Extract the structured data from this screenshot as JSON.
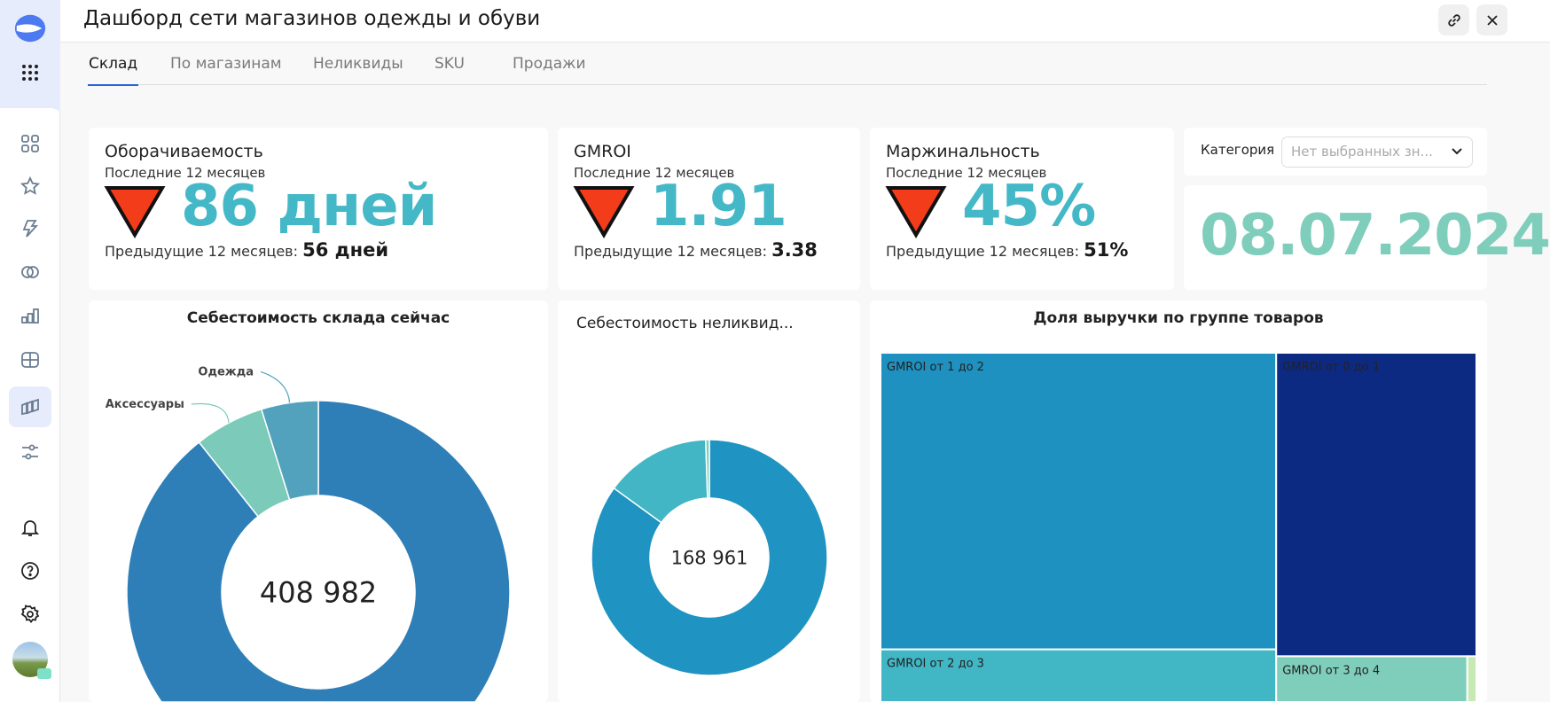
{
  "header": {
    "title": "Дашборд сети магазинов одежды и обуви",
    "link_icon": "link-icon",
    "close_icon": "close-icon"
  },
  "tabs": [
    {
      "label": "Склад",
      "active": true
    },
    {
      "label": "По магазинам"
    },
    {
      "label": "Неликвиды"
    },
    {
      "label": "SKU"
    },
    {
      "label": "Продажи"
    }
  ],
  "sidebar": {
    "items": [
      "logo",
      "apps-grid-icon",
      "dashboards-icon",
      "star-icon",
      "bolt-icon",
      "connections-icon",
      "charts-icon",
      "datasets-icon",
      "workbooks-icon",
      "settings-sliders-icon",
      "bell-icon",
      "help-icon",
      "gear-icon",
      "avatar"
    ]
  },
  "kpis": [
    {
      "title": "Оборачиваемость",
      "subtitle": "Последние 12 месяцев",
      "value": "86 дней",
      "prev_label": "Предыдущие 12 месяцев:",
      "prev_value": "56 дней",
      "trend": "down"
    },
    {
      "title": "GMROI",
      "subtitle": "Последние 12 месяцев",
      "value": "1.91",
      "prev_label": "Предыдущие 12 месяцев:",
      "prev_value": "3.38",
      "trend": "down"
    },
    {
      "title": "Маржинальность",
      "subtitle": "Последние 12 месяцев",
      "value": "45%",
      "prev_label": "Предыдущие 12 месяцев:",
      "prev_value": "51%",
      "trend": "down"
    }
  ],
  "filter": {
    "label": "Категория",
    "placeholder": "Нет выбранных зн..."
  },
  "date": "08.07.2024",
  "colors": {
    "kpi": "#45b8c8",
    "date": "#7fcdbb",
    "trend_down": "#f23c1a"
  },
  "chart_data": [
    {
      "type": "pie",
      "title": "Себестоимость склада сейчас",
      "center_label": "408 982",
      "slices": [
        {
          "name": "",
          "value": 89.3,
          "color": "#2e7fb8"
        },
        {
          "name": "Аксессуары",
          "value": 5.9,
          "color": "#7ccaba"
        },
        {
          "name": "Одежда",
          "value": 4.8,
          "color": "#52a2bd"
        }
      ]
    },
    {
      "type": "pie",
      "title": "Себестоимость неликвид...",
      "center_label": "168 961",
      "slices": [
        {
          "name": "",
          "value": 85,
          "color": "#1f93c1"
        },
        {
          "name": "",
          "value": 14.5,
          "color": "#42b6c4"
        },
        {
          "name": "",
          "value": 0.5,
          "color": "#7fcdbb"
        }
      ]
    },
    {
      "type": "treemap",
      "title": "Доля выручки по группе товаров",
      "items": [
        {
          "name": "GMROI от 1 до 2",
          "value": 56.4,
          "color": "#1e91c0"
        },
        {
          "name": "GMROI от 2 до 3",
          "value": 10.0,
          "color": "#41b6c4"
        },
        {
          "name": "GMROI от 0 до 1",
          "value": 29.2,
          "color": "#0d2a82"
        },
        {
          "name": "GMROI от 3 до 4",
          "value": 4.2,
          "color": "#7fcdbb"
        },
        {
          "name": "",
          "value": 0.2,
          "color": "#c7e9b4"
        }
      ]
    }
  ]
}
